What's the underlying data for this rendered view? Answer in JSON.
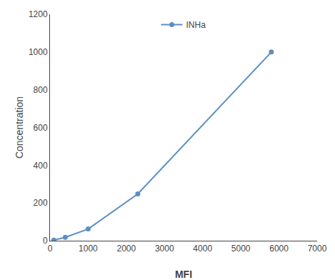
{
  "chart_data": {
    "type": "line",
    "x": [
      100,
      400,
      1000,
      2300,
      5800
    ],
    "series": [
      {
        "name": "INHa",
        "color": "#5b8ec4",
        "values": [
          3,
          18,
          62,
          248,
          1000
        ],
        "marker": "circle",
        "line_style": "solid"
      }
    ],
    "xlabel": "MFI",
    "ylabel": "Concentration",
    "xlim": [
      0,
      7000
    ],
    "ylim": [
      0,
      1200
    ],
    "xticks": [
      0,
      1000,
      2000,
      3000,
      4000,
      5000,
      6000,
      7000
    ],
    "yticks": [
      0,
      200,
      400,
      600,
      800,
      1000,
      1200
    ],
    "grid": false,
    "legend": "upper center"
  }
}
